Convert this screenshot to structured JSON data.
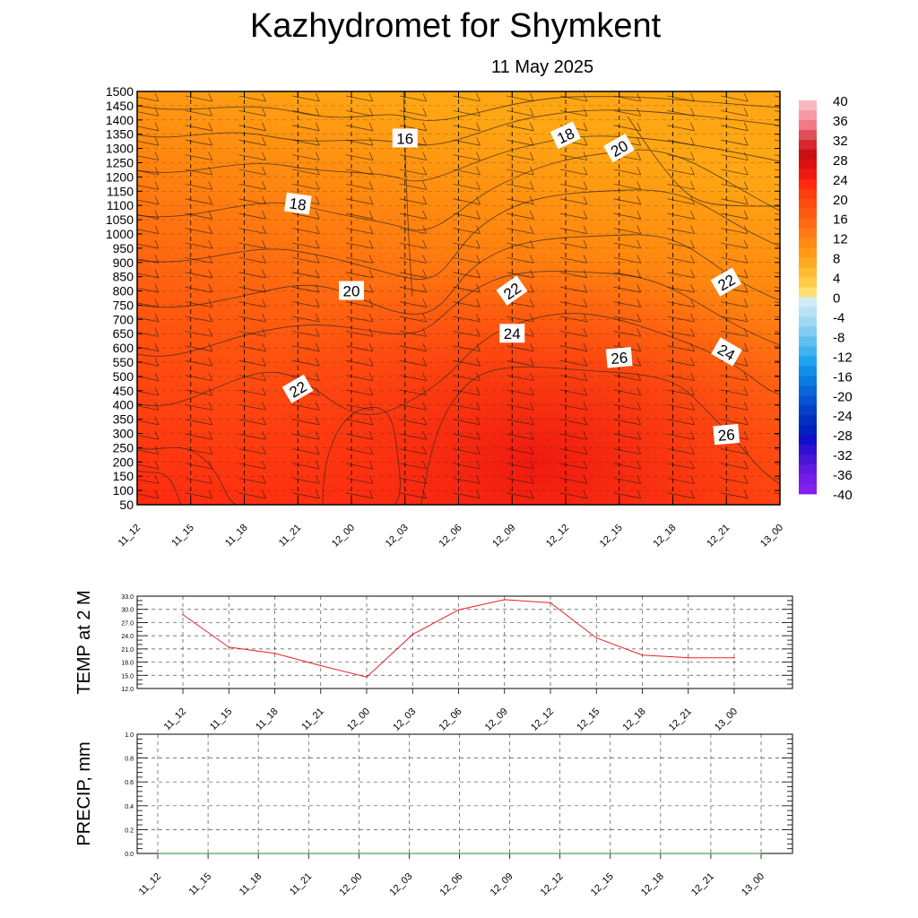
{
  "header": {
    "title": "Kazhydromet  for Shymkent",
    "date": "11 May 2025"
  },
  "colors": {
    "line_temp": "#e8202a",
    "line_precip": "#2a8a2a",
    "contour": "#3a2a20"
  },
  "chart_data": [
    {
      "type": "heatmap",
      "title": "Kazhydromet  for Shymkent",
      "subtitle": "11 May 2025",
      "x_tick_labels": [
        "11_12",
        "11_15",
        "11_18",
        "11_21",
        "12_00",
        "12_03",
        "12_06",
        "12_09",
        "12_12",
        "12_15",
        "12_18",
        "12_21",
        "13_00"
      ],
      "y_tick_labels": [
        "1500",
        "1450",
        "1400",
        "1350",
        "1300",
        "1250",
        "1200",
        "1150",
        "1100",
        "1050",
        "1000",
        "950",
        "900",
        "850",
        "800",
        "750",
        "700",
        "650",
        "600",
        "550",
        "500",
        "450",
        "400",
        "350",
        "300",
        "250",
        "200",
        "150",
        "100",
        "50"
      ],
      "ylim": [
        50,
        1500
      ],
      "colorbar": {
        "labels": [
          "40",
          "36",
          "32",
          "28",
          "24",
          "20",
          "16",
          "12",
          "8",
          "4",
          "0",
          "-4",
          "-8",
          "-12",
          "-16",
          "-20",
          "-24",
          "-28",
          "-32",
          "-36",
          "-40"
        ],
        "range": [
          -40,
          40
        ]
      },
      "contour_labels": [
        {
          "text": "16",
          "time": "12_03",
          "height": 1335
        },
        {
          "text": "18",
          "time": "11_21",
          "height": 1105
        },
        {
          "text": "18",
          "time": "12_12",
          "height": 1345
        },
        {
          "text": "20",
          "time": "12_15",
          "height": 1300
        },
        {
          "text": "20",
          "time": "12_00",
          "height": 800
        },
        {
          "text": "22",
          "time": "12_09",
          "height": 800
        },
        {
          "text": "22",
          "time": "12_21",
          "height": 830
        },
        {
          "text": "24",
          "time": "12_09",
          "height": 650
        },
        {
          "text": "24",
          "time": "12_21",
          "height": 585
        },
        {
          "text": "26",
          "time": "12_15",
          "height": 565
        },
        {
          "text": "22",
          "time": "11_21",
          "height": 455
        },
        {
          "text": "26",
          "time": "12_21",
          "height": 295
        }
      ],
      "grid": true
    },
    {
      "type": "line",
      "ylabel": "TEMP at 2 M",
      "categories": [
        "11_12",
        "11_15",
        "11_18",
        "11_21",
        "12_00",
        "12_03",
        "12_06",
        "12_09",
        "12_12",
        "12_15",
        "12_18",
        "12_21",
        "13_00"
      ],
      "values": [
        28.8,
        21.4,
        20.0,
        17.2,
        14.6,
        24.3,
        29.9,
        32.2,
        31.5,
        23.5,
        19.6,
        19.0,
        19.0
      ],
      "y_tick_labels": [
        "33.0",
        "30.0",
        "27.0",
        "24.0",
        "21.0",
        "18.0",
        "15.0",
        "12.0"
      ],
      "ylim": [
        12,
        33
      ],
      "grid": true
    },
    {
      "type": "line",
      "ylabel": "PRECIP, mm",
      "categories": [
        "11_12",
        "11_15",
        "11_18",
        "11_21",
        "12_00",
        "12_03",
        "12_06",
        "12_09",
        "12_12",
        "12_15",
        "12_18",
        "12_21",
        "13_00"
      ],
      "values": [
        0,
        0,
        0,
        0,
        0,
        0,
        0,
        0,
        0,
        0,
        0,
        0,
        0
      ],
      "y_tick_labels": [
        "1.0",
        "0.8",
        "0.6",
        "0.4",
        "0.2",
        "0.0"
      ],
      "ylim": [
        0,
        1
      ],
      "grid": true
    }
  ]
}
